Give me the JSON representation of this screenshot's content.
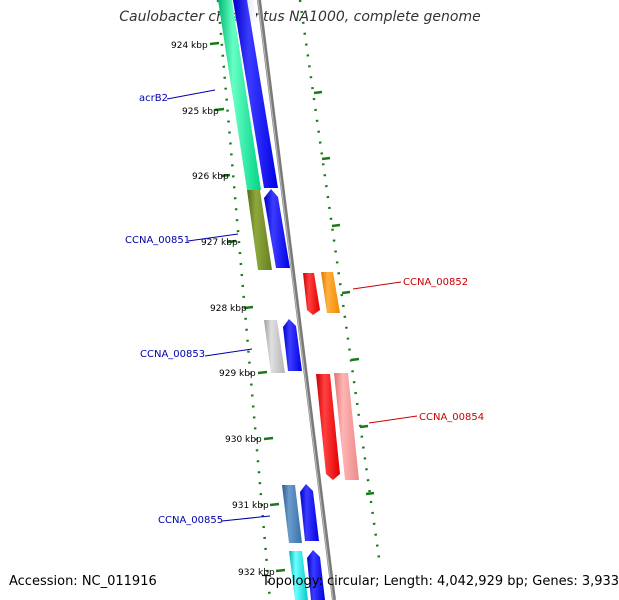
{
  "title": "Caulobacter crescentus NA1000, complete genome",
  "footer": {
    "accession": "Accession: NC_011916",
    "summary": "Topology: circular; Length: 4,042,929 bp; Genes: 3,933"
  },
  "ticks": [
    "924 kbp",
    "925 kbp",
    "926 kbp",
    "927 kbp",
    "928 kbp",
    "929 kbp",
    "930 kbp",
    "931 kbp",
    "932 kbp"
  ],
  "labels": {
    "acrB2": "acrB2",
    "ccna00851": "CCNA_00851",
    "ccna00852": "CCNA_00852",
    "ccna00853": "CCNA_00853",
    "ccna00854": "CCNA_00854",
    "ccna00855": "CCNA_00855"
  },
  "colors": {
    "backbone": "#888888",
    "tick_dots": "#1a7a1a",
    "forward_cds": "#0000ee",
    "reverse_cds": "#ee0000",
    "label_left": "#0000aa",
    "label_right": "#cc0000"
  }
}
